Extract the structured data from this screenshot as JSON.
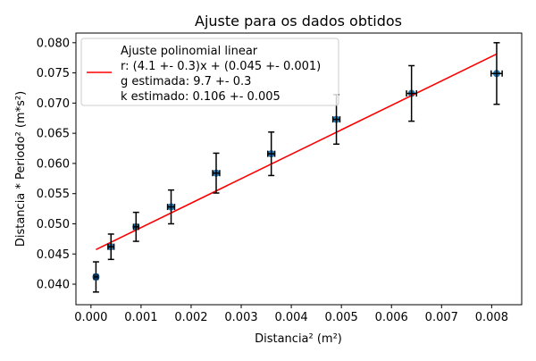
{
  "chart_data": {
    "type": "scatter",
    "title": "Ajuste para os dados obtidos",
    "xlabel": "Distancia² (m²)",
    "ylabel": "Distancia * Periodo² (m*s²)",
    "xlim": [
      -0.0003,
      0.0086
    ],
    "ylim": [
      0.0366,
      0.0816
    ],
    "xticks": [
      0.0,
      0.001,
      0.002,
      0.003,
      0.004,
      0.005,
      0.006,
      0.007,
      0.008
    ],
    "xtick_labels": [
      "0.000",
      "0.001",
      "0.002",
      "0.003",
      "0.004",
      "0.005",
      "0.006",
      "0.007",
      "0.008"
    ],
    "yticks": [
      0.04,
      0.045,
      0.05,
      0.055,
      0.06,
      0.065,
      0.07,
      0.075,
      0.08
    ],
    "ytick_labels": [
      "0.040",
      "0.045",
      "0.050",
      "0.055",
      "0.060",
      "0.065",
      "0.070",
      "0.075",
      "0.080"
    ],
    "grid": false,
    "legend_position": "upper-left",
    "colors": {
      "points": "#1f77b4",
      "fit": "#ff0000",
      "errorbars": "#000000"
    },
    "points": {
      "x": [
        0.0001,
        0.0004,
        0.0009,
        0.0016,
        0.0025,
        0.0036,
        0.0049,
        0.0064,
        0.0081
      ],
      "y": [
        0.0412,
        0.0462,
        0.0495,
        0.0528,
        0.0584,
        0.0616,
        0.0673,
        0.0716,
        0.0749
      ],
      "yerr": [
        0.0025,
        0.0021,
        0.0024,
        0.0028,
        0.0033,
        0.0036,
        0.0041,
        0.0046,
        0.0051
      ],
      "xerr": [
        4e-05,
        6e-05,
        5e-05,
        7e-05,
        7e-05,
        7e-05,
        7e-05,
        0.0001,
        0.00011
      ]
    },
    "fit_line": {
      "x": [
        0.0001,
        0.0081
      ],
      "y": [
        0.04573,
        0.07813
      ]
    },
    "legend": {
      "entries": [
        "Ajuste polinomial linear",
        "r: (4.1 +- 0.3)x + (0.045 +- 0.001)",
        "g estimada: 9.7 +- 0.3",
        "k estimado: 0.106 +- 0.005"
      ]
    }
  }
}
